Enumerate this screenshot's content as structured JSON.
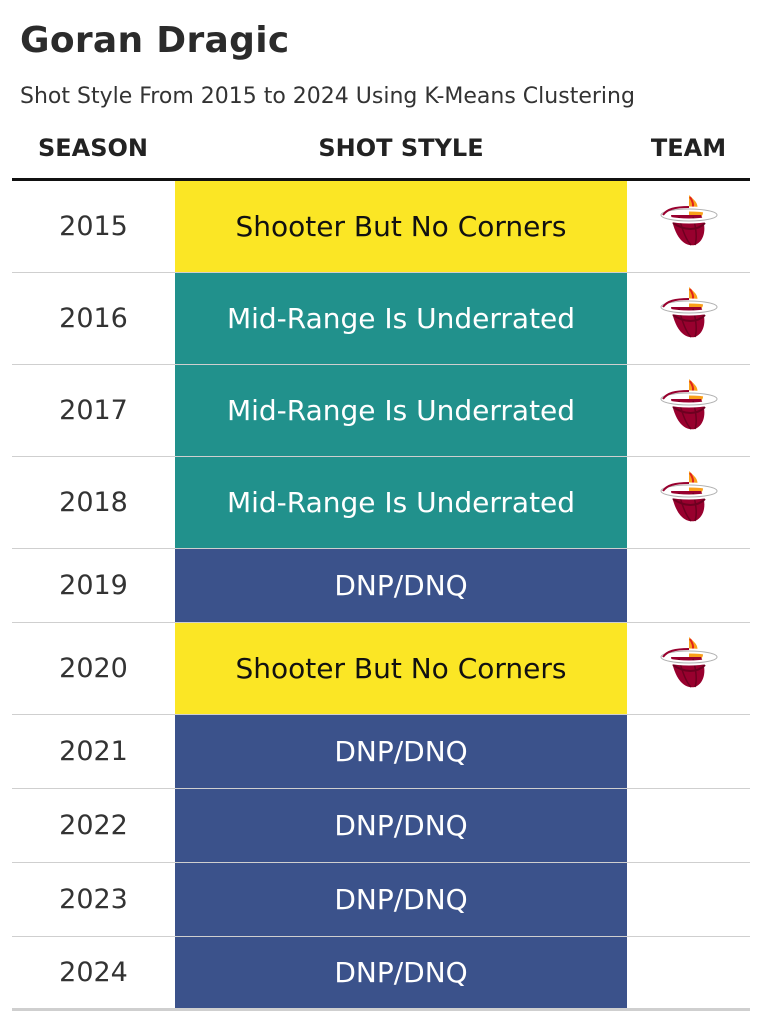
{
  "chart_data": {
    "type": "table",
    "title": "Goran Dragic",
    "subtitle": "Shot Style From 2015 to 2024 Using K-Means Clustering",
    "columns": [
      "SEASON",
      "SHOT STYLE",
      "TEAM"
    ],
    "styles": {
      "Shooter But No Corners": {
        "bg": "#fbe625",
        "fg": "#111111"
      },
      "Mid-Range Is Underrated": {
        "bg": "#21918c",
        "fg": "#ffffff"
      },
      "DNP/DNQ": {
        "bg": "#3b528b",
        "fg": "#ffffff"
      }
    },
    "rows": [
      {
        "season": "2015",
        "shot_style": "Shooter But No Corners",
        "team_icon": "miami-heat-logo"
      },
      {
        "season": "2016",
        "shot_style": "Mid-Range Is Underrated",
        "team_icon": "miami-heat-logo"
      },
      {
        "season": "2017",
        "shot_style": "Mid-Range Is Underrated",
        "team_icon": "miami-heat-logo"
      },
      {
        "season": "2018",
        "shot_style": "Mid-Range Is Underrated",
        "team_icon": "miami-heat-logo"
      },
      {
        "season": "2019",
        "shot_style": "DNP/DNQ",
        "team_icon": ""
      },
      {
        "season": "2020",
        "shot_style": "Shooter But No Corners",
        "team_icon": "miami-heat-logo"
      },
      {
        "season": "2021",
        "shot_style": "DNP/DNQ",
        "team_icon": ""
      },
      {
        "season": "2022",
        "shot_style": "DNP/DNQ",
        "team_icon": ""
      },
      {
        "season": "2023",
        "shot_style": "DNP/DNQ",
        "team_icon": ""
      },
      {
        "season": "2024",
        "shot_style": "DNP/DNQ",
        "team_icon": ""
      }
    ]
  }
}
